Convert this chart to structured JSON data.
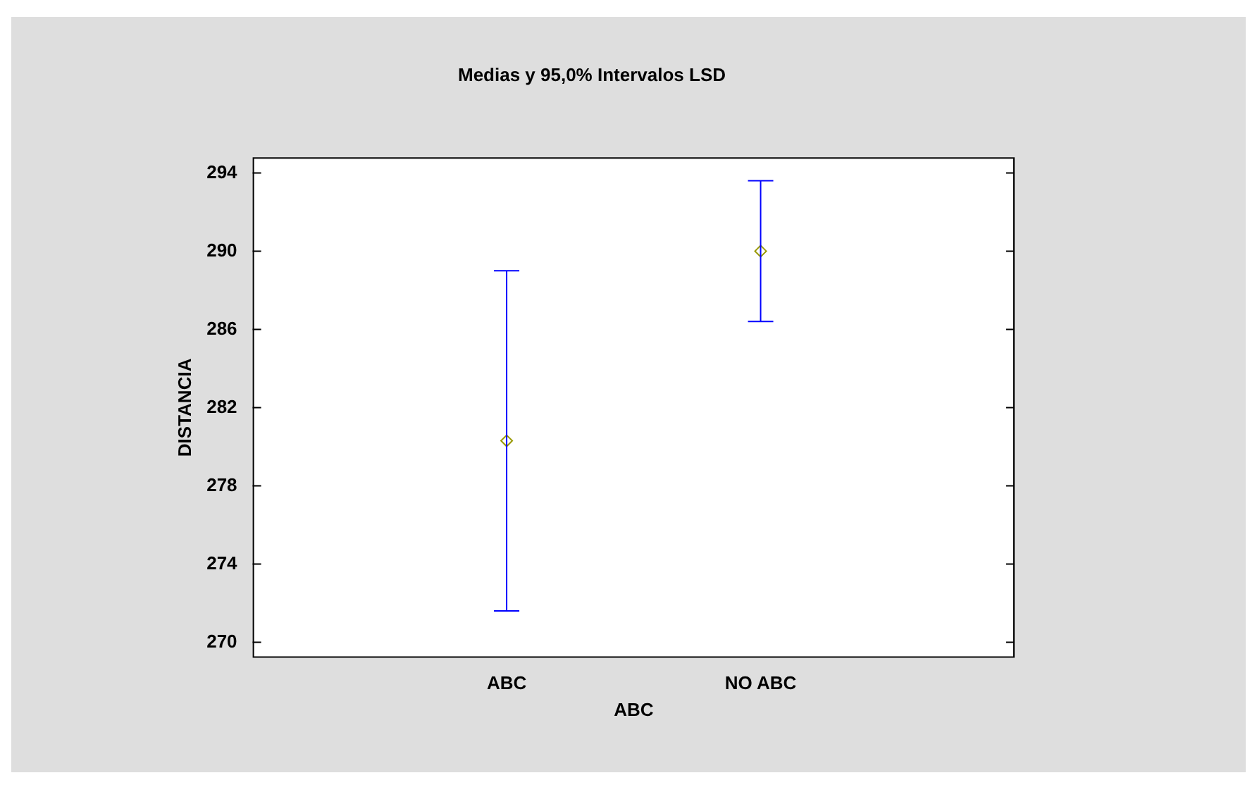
{
  "chart_data": {
    "type": "scatter",
    "title": "Medias y 95,0% Intervalos LSD",
    "xlabel": "ABC",
    "ylabel": "DISTANCIA",
    "categories": [
      "ABC",
      "NO ABC"
    ],
    "values": [
      280.3,
      290.0
    ],
    "errors": [
      8.7,
      3.6
    ],
    "color": "#999900",
    "marker": "diamond",
    "ylim": [
      269.2,
      294.8
    ],
    "yticks": [
      270,
      274,
      278,
      282,
      286,
      290,
      294
    ],
    "grid": false,
    "legend": false
  }
}
